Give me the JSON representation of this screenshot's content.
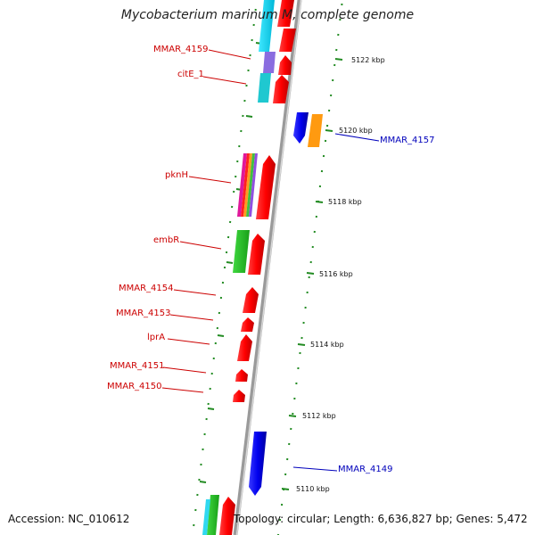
{
  "title": "Mycobacterium marinum M, complete genome",
  "accession": "Accession: NC_010612",
  "topology": "Topology: circular; Length: 6,636,827 bp; Genes: 5,472",
  "colors": {
    "forward_label": "#cc0000",
    "reverse_label": "#0000bb",
    "tick": "#228b22",
    "backbone": "#999999"
  },
  "scale_ticks": [
    "5122 kbp",
    "5120 kbp",
    "5118 kbp",
    "5116 kbp",
    "5114 kbp",
    "5112 kbp",
    "5110 kbp"
  ],
  "gene_labels": [
    "MMAR_4159",
    "citE_1",
    "MMAR_4157",
    "pknH",
    "embR",
    "MMAR_4154",
    "MMAR_4153",
    "lprA",
    "MMAR_4151",
    "MMAR_4150",
    "MMAR_4149"
  ]
}
